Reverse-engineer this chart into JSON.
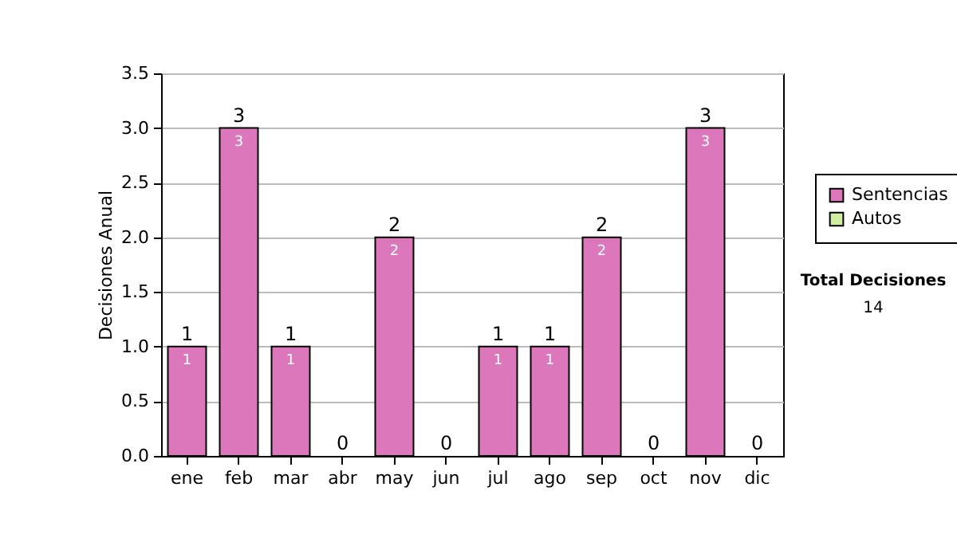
{
  "chart_data": {
    "type": "bar",
    "stacked": true,
    "ylabel": "Decisiones Anual",
    "categories": [
      "ene",
      "feb",
      "mar",
      "abr",
      "may",
      "jun",
      "jul",
      "ago",
      "sep",
      "oct",
      "nov",
      "dic"
    ],
    "series": [
      {
        "name": "Sentencias",
        "color": "#dd77bb",
        "values": [
          1,
          3,
          1,
          0,
          2,
          0,
          1,
          1,
          2,
          0,
          3,
          0
        ],
        "value_labels": [
          "1",
          "3",
          "1",
          null,
          "2",
          null,
          "1",
          "1",
          "2",
          null,
          "3",
          null
        ]
      },
      {
        "name": "Autos",
        "color": "#cfeea0",
        "values": [
          0,
          0,
          0,
          0,
          0,
          0,
          0,
          0,
          0,
          0,
          0,
          0
        ]
      }
    ],
    "totals": [
      "1",
      "3",
      "1",
      "0",
      "2",
      "0",
      "1",
      "1",
      "2",
      "0",
      "3",
      "0"
    ],
    "ylim": [
      0,
      3.5
    ],
    "yticks": [
      {
        "value": 0,
        "label": "0.0"
      },
      0.5,
      {
        "value": 1,
        "label": "1.0"
      },
      1.5,
      {
        "value": 2,
        "label": "2.0"
      },
      2.5,
      {
        "value": 3,
        "label": "3.0"
      },
      3.5
    ],
    "grid": "y",
    "legend": "right",
    "annotations": [
      "Total Decisiones",
      "14"
    ]
  }
}
